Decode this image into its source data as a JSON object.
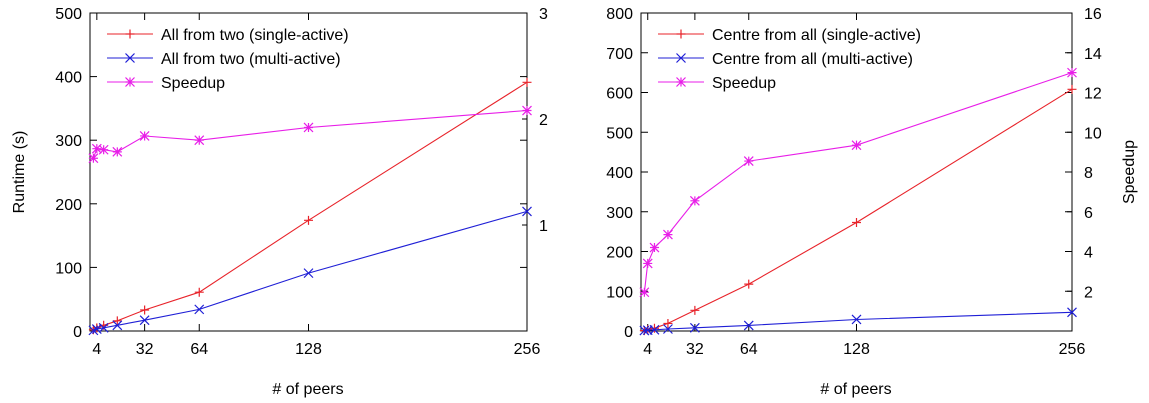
{
  "chart_data": [
    {
      "type": "line",
      "xlabel": "# of peers",
      "ylabel": "Runtime (s)",
      "y2label": "",
      "x_ticks": [
        4,
        32,
        64,
        128,
        256
      ],
      "xlim": [
        0,
        256
      ],
      "ylim": [
        0,
        500
      ],
      "y_ticks": [
        0,
        100,
        200,
        300,
        400,
        500
      ],
      "y2lim": [
        0,
        3
      ],
      "y2_ticks": [
        1,
        2,
        3
      ],
      "legend_position": "top-left",
      "series": [
        {
          "name": "All from two (single-active)",
          "axis": "left",
          "color": "#e8232a",
          "marker": "plus",
          "x": [
            2,
            4,
            8,
            16,
            32,
            64,
            128,
            256
          ],
          "y": [
            2,
            5,
            9,
            16,
            33,
            61,
            174,
            391
          ]
        },
        {
          "name": "All from two (multi-active)",
          "axis": "left",
          "color": "#1f1fd6",
          "marker": "x",
          "x": [
            2,
            4,
            8,
            16,
            32,
            64,
            128,
            256
          ],
          "y": [
            1,
            3,
            5,
            9,
            17,
            34,
            91,
            188
          ]
        },
        {
          "name": "Speedup",
          "axis": "right",
          "color": "#e81ee8",
          "marker": "star",
          "x": [
            2,
            4,
            8,
            16,
            32,
            64,
            128,
            256
          ],
          "y": [
            1.63,
            1.72,
            1.71,
            1.69,
            1.84,
            1.8,
            1.92,
            2.08
          ]
        }
      ]
    },
    {
      "type": "line",
      "xlabel": "# of peers",
      "ylabel": "",
      "y2label": "Speedup",
      "x_ticks": [
        4,
        32,
        64,
        128,
        256
      ],
      "xlim": [
        0,
        256
      ],
      "ylim": [
        0,
        800
      ],
      "y_ticks": [
        0,
        100,
        200,
        300,
        400,
        500,
        600,
        700,
        800
      ],
      "y2lim": [
        0,
        16
      ],
      "y2_ticks": [
        2,
        4,
        6,
        8,
        10,
        12,
        14,
        16
      ],
      "legend_position": "top-left",
      "series": [
        {
          "name": "Centre from all (single-active)",
          "axis": "left",
          "color": "#e8232a",
          "marker": "plus",
          "x": [
            2,
            4,
            8,
            16,
            32,
            64,
            128,
            256
          ],
          "y": [
            1,
            3,
            7,
            19,
            52,
            118,
            273,
            608
          ]
        },
        {
          "name": "Centre from all (multi-active)",
          "axis": "left",
          "color": "#1f1fd6",
          "marker": "x",
          "x": [
            2,
            4,
            8,
            16,
            32,
            64,
            128,
            256
          ],
          "y": [
            1,
            2,
            3,
            5,
            8,
            14,
            29,
            47
          ]
        },
        {
          "name": "Speedup",
          "axis": "right",
          "color": "#e81ee8",
          "marker": "star",
          "x": [
            2,
            4,
            8,
            16,
            32,
            64,
            128,
            256
          ],
          "y": [
            1.95,
            3.4,
            4.2,
            4.85,
            6.55,
            8.55,
            9.35,
            13.0
          ]
        }
      ]
    }
  ]
}
